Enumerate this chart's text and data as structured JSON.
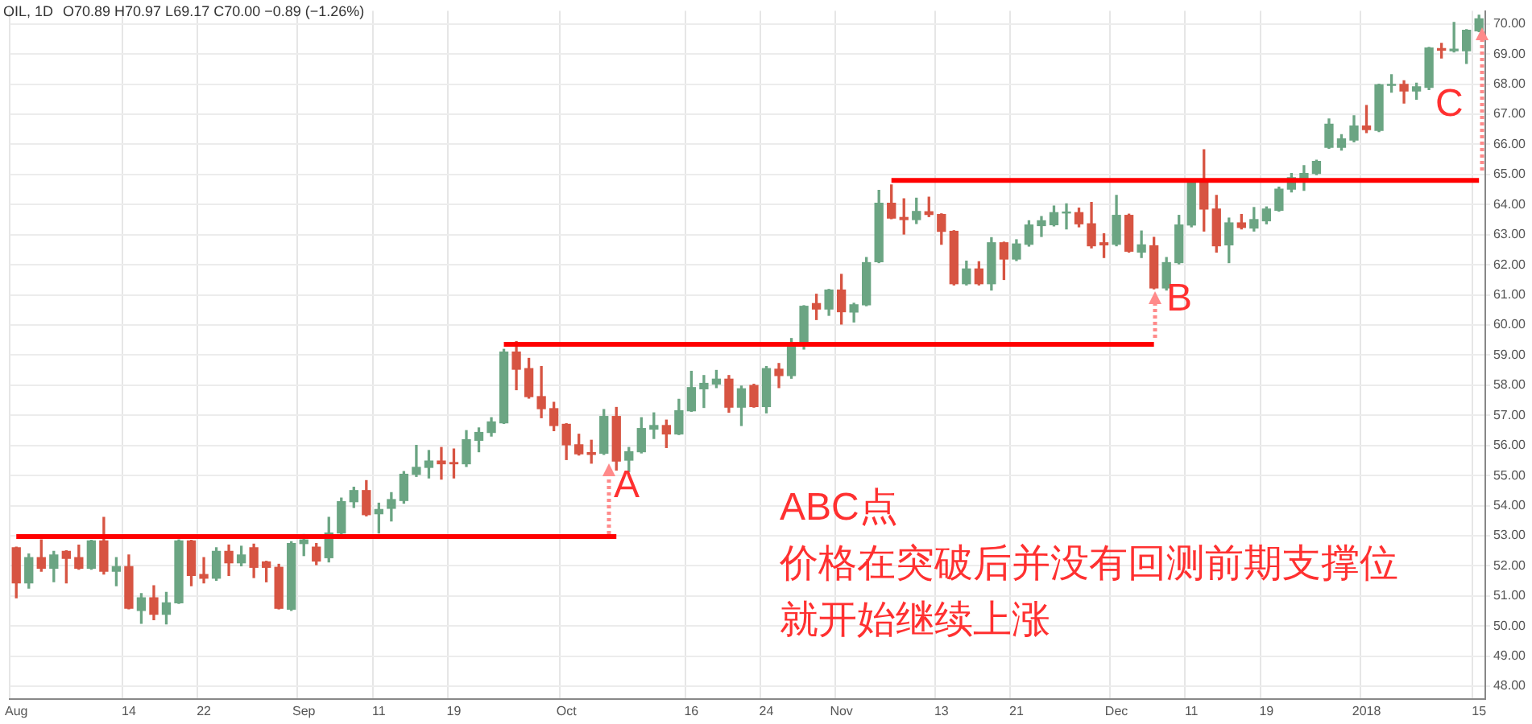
{
  "chart_data": {
    "type": "candlestick",
    "title": "OIL, 1D",
    "annotations": [
      "O70.89 H70.97 L69.17 C70.00 −0.89 (−1.26%)",
      "A",
      "B",
      "C",
      "ABC点",
      "价格在突破后并没有回测前期支撑位",
      "就开始继续上涨"
    ],
    "categories": [
      "Aug",
      null,
      null,
      null,
      null,
      null,
      null,
      null,
      null,
      "14",
      null,
      null,
      null,
      null,
      null,
      "22",
      null,
      null,
      null,
      null,
      null,
      null,
      null,
      "Sep",
      null,
      null,
      null,
      null,
      null,
      "11",
      null,
      null,
      null,
      null,
      null,
      "19",
      null,
      null,
      null,
      null,
      null,
      null,
      null,
      null,
      "Oct",
      null,
      null,
      null,
      null,
      null,
      null,
      null,
      null,
      null,
      "16",
      null,
      null,
      null,
      null,
      null,
      "24",
      null,
      null,
      null,
      null,
      null,
      "Nov",
      null,
      null,
      null,
      null,
      null,
      null,
      null,
      "13",
      null,
      null,
      null,
      null,
      null,
      "21",
      null,
      null,
      null,
      null,
      null,
      null,
      null,
      "Dec",
      null,
      null,
      null,
      null,
      null,
      "11",
      null,
      null,
      null,
      null,
      null,
      "19",
      null,
      null,
      null,
      null,
      null,
      null,
      null,
      "2018",
      null,
      null,
      null,
      null,
      null,
      null,
      null,
      null,
      "15"
    ],
    "ohlc": [
      [
        52.6,
        52.62,
        50.94,
        51.43
      ],
      [
        51.43,
        52.39,
        51.26,
        52.27
      ],
      [
        52.27,
        52.86,
        51.82,
        51.92
      ],
      [
        51.92,
        52.48,
        51.47,
        52.36
      ],
      [
        52.48,
        52.5,
        51.43,
        52.25
      ],
      [
        52.27,
        52.69,
        51.89,
        51.92
      ],
      [
        51.92,
        52.85,
        51.89,
        52.83
      ],
      [
        52.83,
        53.61,
        51.73,
        51.82
      ],
      [
        51.82,
        52.27,
        51.34,
        51.97
      ],
      [
        51.97,
        52.36,
        50.57,
        50.59
      ],
      [
        50.52,
        51.08,
        50.09,
        50.94
      ],
      [
        50.94,
        51.34,
        50.21,
        50.39
      ],
      [
        50.39,
        51.12,
        50.07,
        50.77
      ],
      [
        50.77,
        52.86,
        50.75,
        52.83
      ],
      [
        52.83,
        52.85,
        51.34,
        51.68
      ],
      [
        51.71,
        52.27,
        51.43,
        51.59
      ],
      [
        51.59,
        52.6,
        51.52,
        52.48
      ],
      [
        52.48,
        52.69,
        51.68,
        52.1
      ],
      [
        52.1,
        52.65,
        52.0,
        52.36
      ],
      [
        52.6,
        52.72,
        51.61,
        51.95
      ],
      [
        52.13,
        52.15,
        51.47,
        51.95
      ],
      [
        51.95,
        52.05,
        50.57,
        50.59
      ],
      [
        50.56,
        52.8,
        50.52,
        52.74
      ],
      [
        52.74,
        53.04,
        52.34,
        52.86
      ],
      [
        52.62,
        52.74,
        52.04,
        52.16
      ],
      [
        52.27,
        53.61,
        52.13,
        53.09
      ],
      [
        53.09,
        54.25,
        53.05,
        54.13
      ],
      [
        54.13,
        54.61,
        53.94,
        54.5
      ],
      [
        54.5,
        54.83,
        53.66,
        53.7
      ],
      [
        53.73,
        54.08,
        53.09,
        53.87
      ],
      [
        53.91,
        54.43,
        53.49,
        54.2
      ],
      [
        54.17,
        55.13,
        54.08,
        55.04
      ],
      [
        55.04,
        56.0,
        54.97,
        55.27
      ],
      [
        55.27,
        55.83,
        54.92,
        55.48
      ],
      [
        55.48,
        55.93,
        54.88,
        55.39
      ],
      [
        55.43,
        55.88,
        54.92,
        55.39
      ],
      [
        55.39,
        56.49,
        55.3,
        56.19
      ],
      [
        56.17,
        56.58,
        55.79,
        56.43
      ],
      [
        56.43,
        56.92,
        56.31,
        56.78
      ],
      [
        56.75,
        59.19,
        56.73,
        59.1
      ],
      [
        59.1,
        59.45,
        57.85,
        58.53
      ],
      [
        58.55,
        58.89,
        57.57,
        57.62
      ],
      [
        57.62,
        58.62,
        56.92,
        57.22
      ],
      [
        57.22,
        57.43,
        56.49,
        56.66
      ],
      [
        56.7,
        56.72,
        55.53,
        56.02
      ],
      [
        56.02,
        56.37,
        55.68,
        55.72
      ],
      [
        55.76,
        56.17,
        55.41,
        55.7
      ],
      [
        55.74,
        57.19,
        55.7,
        56.96
      ],
      [
        56.96,
        57.26,
        55.18,
        55.48
      ],
      [
        55.51,
        55.93,
        55.13,
        55.79
      ],
      [
        55.79,
        56.92,
        55.75,
        56.56
      ],
      [
        56.54,
        57.08,
        56.23,
        56.66
      ],
      [
        56.66,
        56.84,
        55.93,
        56.38
      ],
      [
        56.38,
        57.53,
        56.36,
        57.15
      ],
      [
        57.15,
        58.46,
        57.13,
        57.92
      ],
      [
        57.88,
        58.32,
        57.26,
        58.06
      ],
      [
        58.04,
        58.49,
        57.92,
        58.2
      ],
      [
        58.2,
        58.32,
        57.1,
        57.27
      ],
      [
        57.27,
        57.97,
        56.66,
        57.88
      ],
      [
        57.99,
        58.03,
        57.27,
        57.29
      ],
      [
        57.29,
        58.62,
        57.08,
        58.55
      ],
      [
        58.53,
        58.72,
        57.92,
        58.32
      ],
      [
        58.32,
        59.55,
        58.23,
        59.37
      ],
      [
        59.36,
        60.64,
        59.2,
        60.62
      ],
      [
        60.71,
        61.02,
        60.18,
        60.53
      ],
      [
        60.53,
        61.18,
        60.32,
        61.16
      ],
      [
        61.16,
        61.68,
        60.03,
        60.44
      ],
      [
        60.43,
        60.72,
        60.1,
        60.67
      ],
      [
        60.67,
        62.24,
        60.64,
        62.07
      ],
      [
        62.1,
        64.47,
        62.07,
        64.04
      ],
      [
        64.04,
        64.65,
        63.53,
        63.55
      ],
      [
        63.57,
        64.19,
        63.02,
        63.5
      ],
      [
        63.5,
        64.21,
        63.37,
        63.77
      ],
      [
        63.76,
        64.24,
        63.6,
        63.67
      ],
      [
        63.67,
        63.69,
        62.68,
        63.11
      ],
      [
        63.11,
        63.13,
        61.33,
        61.37
      ],
      [
        61.37,
        62.12,
        61.33,
        61.86
      ],
      [
        61.86,
        62.1,
        61.33,
        61.37
      ],
      [
        61.37,
        62.9,
        61.16,
        62.73
      ],
      [
        62.73,
        62.75,
        61.51,
        62.19
      ],
      [
        62.19,
        62.83,
        62.14,
        62.69
      ],
      [
        62.68,
        63.46,
        62.62,
        63.32
      ],
      [
        63.3,
        63.6,
        62.94,
        63.46
      ],
      [
        63.33,
        63.95,
        63.29,
        63.73
      ],
      [
        63.72,
        64.02,
        63.19,
        63.75
      ],
      [
        63.73,
        63.88,
        63.26,
        63.36
      ],
      [
        63.36,
        64.07,
        62.56,
        62.63
      ],
      [
        62.73,
        63.03,
        62.24,
        62.66
      ],
      [
        62.68,
        64.3,
        62.63,
        63.64
      ],
      [
        63.64,
        63.68,
        62.42,
        62.45
      ],
      [
        62.42,
        63.12,
        62.24,
        62.66
      ],
      [
        62.63,
        62.91,
        61.2,
        61.23
      ],
      [
        61.23,
        62.24,
        61.16,
        62.07
      ],
      [
        62.07,
        63.64,
        62.03,
        63.32
      ],
      [
        63.32,
        64.75,
        63.26,
        64.72
      ],
      [
        64.72,
        65.82,
        63.12,
        63.85
      ],
      [
        63.85,
        64.3,
        62.42,
        62.63
      ],
      [
        62.66,
        63.55,
        62.07,
        63.39
      ],
      [
        63.39,
        63.67,
        63.19,
        63.24
      ],
      [
        63.22,
        63.9,
        63.12,
        63.5
      ],
      [
        63.46,
        63.92,
        63.36,
        63.85
      ],
      [
        63.81,
        64.58,
        63.78,
        64.51
      ],
      [
        64.51,
        65.03,
        64.42,
        64.89
      ],
      [
        64.86,
        65.29,
        64.47,
        65.03
      ],
      [
        65.03,
        65.47,
        64.99,
        65.43
      ],
      [
        65.9,
        66.84,
        65.87,
        66.67
      ],
      [
        65.9,
        66.32,
        65.81,
        66.18
      ],
      [
        66.14,
        66.95,
        66.08,
        66.61
      ],
      [
        66.61,
        67.29,
        66.39,
        66.49
      ],
      [
        66.46,
        68.0,
        66.42,
        67.98
      ],
      [
        67.96,
        68.31,
        67.73,
        67.99
      ],
      [
        67.99,
        68.11,
        67.37,
        67.77
      ],
      [
        67.77,
        68.03,
        67.5,
        67.91
      ],
      [
        67.89,
        69.22,
        67.82,
        69.2
      ],
      [
        69.18,
        69.35,
        68.87,
        69.13
      ],
      [
        69.11,
        70.05,
        69.07,
        69.16
      ],
      [
        69.11,
        69.81,
        68.69,
        69.79
      ],
      [
        69.77,
        70.29,
        69.74,
        70.17
      ]
    ],
    "colors": [
      "#d75442",
      "#6ba583",
      "#d75442",
      "#6ba583",
      "#d75442",
      "#d75442",
      "#6ba583",
      "#d75442",
      "#6ba583",
      "#d75442",
      "#6ba583",
      "#d75442",
      "#6ba583",
      "#6ba583",
      "#d75442",
      "#d75442",
      "#6ba583",
      "#d75442",
      "#6ba583",
      "#d75442",
      "#d75442",
      "#d75442",
      "#6ba583",
      "#6ba583",
      "#d75442",
      "#6ba583",
      "#6ba583",
      "#6ba583",
      "#d75442",
      "#6ba583",
      "#6ba583",
      "#6ba583",
      "#6ba583",
      "#6ba583",
      "#d75442",
      "#d75442",
      "#6ba583",
      "#6ba583",
      "#6ba583",
      "#6ba583",
      "#d75442",
      "#d75442",
      "#d75442",
      "#d75442",
      "#d75442",
      "#d75442",
      "#d75442",
      "#6ba583",
      "#d75442",
      "#6ba583",
      "#6ba583",
      "#6ba583",
      "#d75442",
      "#6ba583",
      "#6ba583",
      "#6ba583",
      "#6ba583",
      "#d75442",
      "#6ba583",
      "#d75442",
      "#6ba583",
      "#d75442",
      "#6ba583",
      "#6ba583",
      "#d75442",
      "#6ba583",
      "#d75442",
      "#6ba583",
      "#6ba583",
      "#6ba583",
      "#d75442",
      "#d75442",
      "#6ba583",
      "#d75442",
      "#d75442",
      "#d75442",
      "#6ba583",
      "#d75442",
      "#6ba583",
      "#d75442",
      "#6ba583",
      "#6ba583",
      "#6ba583",
      "#6ba583",
      "#6ba583",
      "#d75442",
      "#d75442",
      "#d75442",
      "#6ba583",
      "#d75442",
      "#6ba583",
      "#d75442",
      "#6ba583",
      "#6ba583",
      "#6ba583",
      "#d75442",
      "#d75442",
      "#6ba583",
      "#d75442",
      "#6ba583",
      "#6ba583",
      "#6ba583",
      "#6ba583",
      "#6ba583",
      "#6ba583",
      "#6ba583",
      "#6ba583",
      "#6ba583",
      "#d75442",
      "#6ba583",
      "#6ba583",
      "#d75442",
      "#6ba583",
      "#6ba583",
      "#d75442",
      "#6ba583",
      "#6ba583",
      "#6ba583"
    ],
    "series": [
      {
        "type": "line",
        "color": "#ff0000",
        "values": [
          52.97,
          52.97,
          52.97,
          52.97,
          52.97,
          52.97,
          52.97,
          52.97,
          52.97,
          52.97,
          52.97,
          52.97,
          52.97,
          52.97,
          52.97,
          52.97,
          52.97,
          52.97,
          52.97,
          52.97,
          52.97,
          52.97,
          52.97,
          52.97,
          52.97,
          52.97,
          52.97,
          52.97,
          52.97,
          52.97,
          52.97,
          52.97,
          52.97,
          52.97,
          52.97,
          52.97,
          52.97,
          52.97,
          52.97,
          52.97,
          52.97,
          52.97,
          52.97,
          52.97,
          52.97,
          52.97,
          52.97,
          52.97,
          52.97,
          null,
          null,
          null,
          null,
          null,
          null,
          null,
          null,
          null,
          null,
          null,
          null,
          null,
          null,
          null,
          null,
          null,
          null,
          null,
          null,
          null,
          null,
          null,
          null,
          null,
          null,
          null,
          null,
          null,
          null,
          null,
          null,
          null,
          null,
          null,
          null,
          null,
          null,
          null,
          null,
          null,
          null,
          null,
          null,
          null,
          null,
          null,
          null,
          null,
          null,
          null,
          null,
          null,
          null,
          null,
          null,
          null,
          null,
          null,
          null,
          null,
          null,
          null,
          null,
          null,
          null,
          null,
          null,
          null
        ]
      },
      {
        "type": "line",
        "color": "#ff0000",
        "values": [
          null,
          null,
          null,
          null,
          null,
          null,
          null,
          null,
          null,
          null,
          null,
          null,
          null,
          null,
          null,
          null,
          null,
          null,
          null,
          null,
          null,
          null,
          null,
          null,
          null,
          null,
          null,
          null,
          null,
          null,
          null,
          null,
          null,
          null,
          null,
          null,
          null,
          null,
          null,
          59.36,
          59.36,
          59.36,
          59.36,
          59.36,
          59.36,
          59.36,
          59.36,
          59.36,
          59.36,
          59.36,
          59.36,
          59.36,
          59.36,
          59.36,
          59.36,
          59.36,
          59.36,
          59.36,
          59.36,
          59.36,
          59.36,
          59.36,
          59.36,
          59.36,
          59.36,
          59.36,
          59.36,
          59.36,
          59.36,
          59.36,
          59.36,
          59.36,
          59.36,
          59.36,
          59.36,
          59.36,
          59.36,
          59.36,
          59.36,
          59.36,
          59.36,
          59.36,
          59.36,
          59.36,
          59.36,
          59.36,
          59.36,
          59.36,
          59.36,
          59.36,
          59.36,
          59.36,
          null,
          null,
          null,
          null,
          null,
          null,
          null,
          null,
          null,
          null,
          null,
          null,
          null,
          null,
          null,
          null,
          null,
          null,
          null,
          null,
          null,
          null,
          null,
          null,
          null,
          null
        ]
      },
      {
        "type": "line",
        "color": "#ff0000",
        "values": [
          null,
          null,
          null,
          null,
          null,
          null,
          null,
          null,
          null,
          null,
          null,
          null,
          null,
          null,
          null,
          null,
          null,
          null,
          null,
          null,
          null,
          null,
          null,
          null,
          null,
          null,
          null,
          null,
          null,
          null,
          null,
          null,
          null,
          null,
          null,
          null,
          null,
          null,
          null,
          null,
          null,
          null,
          null,
          null,
          null,
          null,
          null,
          null,
          null,
          null,
          null,
          null,
          null,
          null,
          null,
          null,
          null,
          null,
          null,
          null,
          null,
          null,
          null,
          null,
          null,
          null,
          null,
          null,
          null,
          null,
          64.8,
          64.8,
          64.8,
          64.8,
          64.8,
          64.8,
          64.8,
          64.8,
          64.8,
          64.8,
          64.8,
          64.8,
          64.8,
          64.8,
          64.8,
          64.8,
          64.8,
          64.8,
          64.8,
          64.8,
          64.8,
          64.8,
          64.8,
          64.8,
          64.8,
          64.8,
          64.8,
          64.8,
          64.8,
          64.8,
          64.8,
          64.8,
          64.8,
          64.8,
          64.8,
          64.8,
          64.8,
          64.8,
          64.8,
          64.8,
          64.8,
          64.8,
          64.8,
          64.8,
          64.8,
          64.8,
          64.8,
          64.8
        ]
      }
    ],
    "ylim": [
      47.58,
      70.43
    ],
    "yticks": [
      {
        "value": 48,
        "label": "48.00"
      },
      {
        "value": 49,
        "label": "49.00"
      },
      {
        "value": 50,
        "label": "50.00"
      },
      {
        "value": 51,
        "label": "51.00"
      },
      {
        "value": 52,
        "label": "52.00"
      },
      {
        "value": 53,
        "label": "53.00"
      },
      {
        "value": 54,
        "label": "54.00"
      },
      {
        "value": 55,
        "label": "55.00"
      },
      {
        "value": 56,
        "label": "56.00"
      },
      {
        "value": 57,
        "label": "57.00"
      },
      {
        "value": 58,
        "label": "58.00"
      },
      {
        "value": 59,
        "label": "59.00"
      },
      {
        "value": 60,
        "label": "60.00"
      },
      {
        "value": 61,
        "label": "61.00"
      },
      {
        "value": 62,
        "label": "62.00"
      },
      {
        "value": 63,
        "label": "63.00"
      },
      {
        "value": 64,
        "label": "64.00"
      },
      {
        "value": 65,
        "label": "65.00"
      },
      {
        "value": 66,
        "label": "66.00"
      },
      {
        "value": 67,
        "label": "67.00"
      },
      {
        "value": 68,
        "label": "68.00"
      },
      {
        "value": 69,
        "label": "69.00"
      },
      {
        "value": 70,
        "label": "70.00"
      }
    ],
    "grid": true
  }
}
